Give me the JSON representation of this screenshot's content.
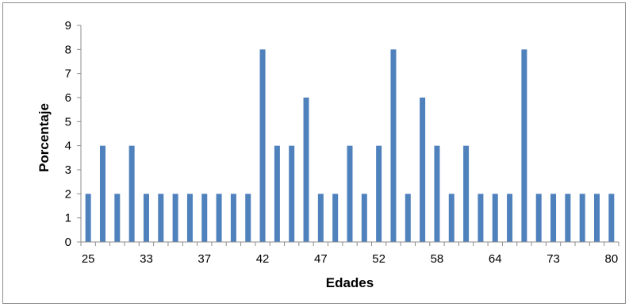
{
  "chart_data": {
    "type": "bar",
    "xlabel": "Edades",
    "ylabel": "Porcentaje",
    "ylim": [
      0,
      9
    ],
    "yticks": [
      "0",
      "1",
      "2",
      "3",
      "4",
      "5",
      "6",
      "7",
      "8",
      "9"
    ],
    "xtick_labels": [
      "25",
      "33",
      "37",
      "42",
      "47",
      "52",
      "58",
      "64",
      "73",
      "80"
    ],
    "values": [
      2,
      4,
      2,
      4,
      2,
      2,
      2,
      2,
      2,
      2,
      2,
      2,
      8,
      4,
      4,
      6,
      2,
      2,
      4,
      2,
      4,
      8,
      2,
      6,
      4,
      2,
      4,
      2,
      2,
      2,
      8,
      2,
      2,
      2,
      2,
      2,
      2
    ],
    "bar_color": "#4f81bd",
    "grid": false,
    "legend": "none"
  }
}
